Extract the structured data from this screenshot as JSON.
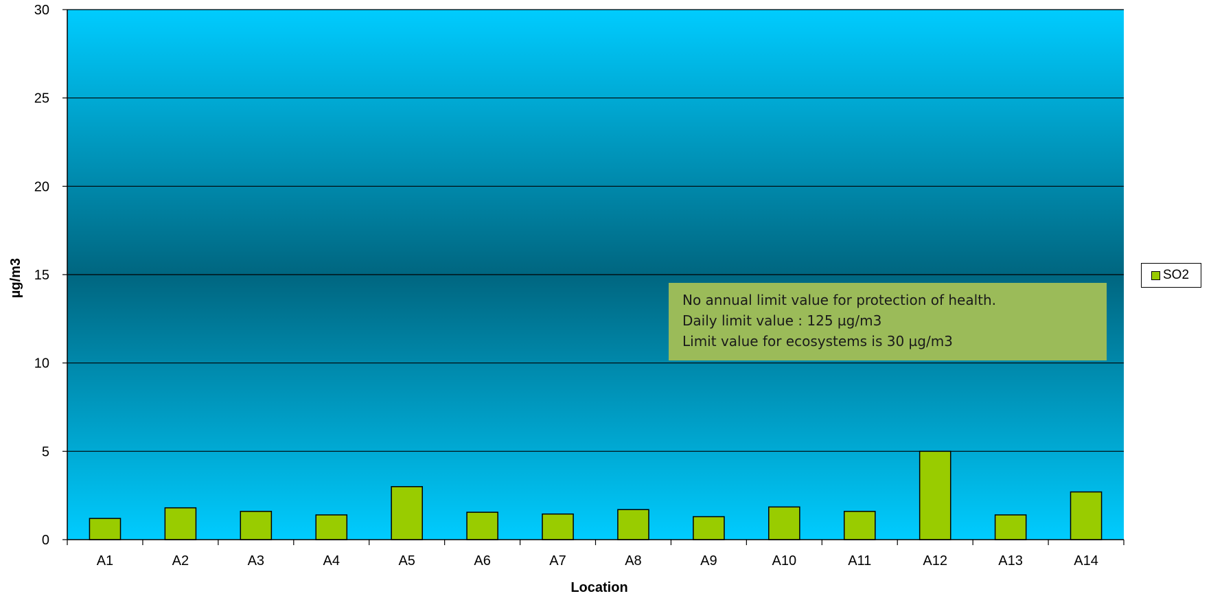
{
  "chart_data": {
    "type": "bar",
    "title": "",
    "xlabel": "Location",
    "ylabel": "µg/m3",
    "ylim": [
      0,
      30
    ],
    "yticks": [
      0,
      5,
      10,
      15,
      20,
      25,
      30
    ],
    "grid": true,
    "legend_position": "right",
    "categories": [
      "A1",
      "A2",
      "A3",
      "A4",
      "A5",
      "A6",
      "A7",
      "A8",
      "A9",
      "A10",
      "A11",
      "A12",
      "A13",
      "A14"
    ],
    "series": [
      {
        "name": "SO2",
        "color": "#99cc00",
        "values": [
          1.2,
          1.8,
          1.6,
          1.4,
          3.0,
          1.55,
          1.45,
          1.7,
          1.3,
          1.85,
          1.6,
          5.0,
          1.4,
          2.7
        ]
      }
    ],
    "annotation": {
      "lines": [
        "No annual limit value for protection of health.",
        "Daily limit value : 125  µg/m3",
        "Limit value for ecosystems is 30 µg/m3"
      ],
      "background": "#9bbb59"
    },
    "plot_gradient": [
      "#00ccff",
      "#006680",
      "#00ccff"
    ]
  }
}
